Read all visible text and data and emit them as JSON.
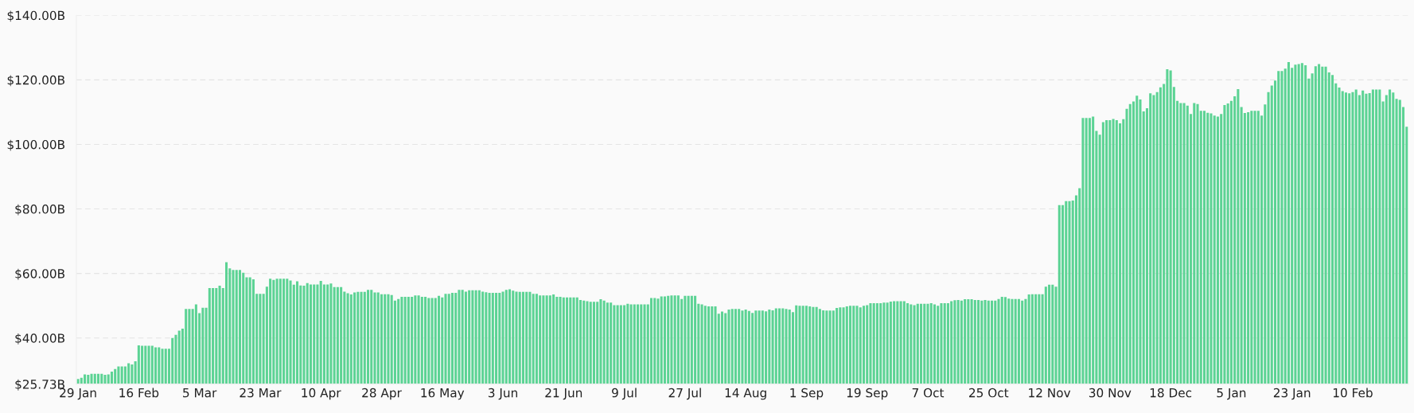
{
  "chart_data": {
    "type": "bar",
    "categories": [
      "29 Jan",
      null,
      null,
      null,
      null,
      null,
      null,
      null,
      null,
      null,
      null,
      null,
      null,
      null,
      null,
      null,
      null,
      null,
      "16 Feb",
      null,
      null,
      null,
      null,
      null,
      null,
      null,
      null,
      null,
      null,
      null,
      null,
      null,
      null,
      null,
      null,
      null,
      "5 Mar",
      null,
      null,
      null,
      null,
      null,
      null,
      null,
      null,
      null,
      null,
      null,
      null,
      null,
      null,
      null,
      null,
      null,
      "23 Mar",
      null,
      null,
      null,
      null,
      null,
      null,
      null,
      null,
      null,
      null,
      null,
      null,
      null,
      null,
      null,
      null,
      null,
      "10 Apr",
      null,
      null,
      null,
      null,
      null,
      null,
      null,
      null,
      null,
      null,
      null,
      null,
      null,
      null,
      null,
      null,
      null,
      "28 Apr",
      null,
      null,
      null,
      null,
      null,
      null,
      null,
      null,
      null,
      null,
      null,
      null,
      null,
      null,
      null,
      null,
      null,
      "16 May",
      null,
      null,
      null,
      null,
      null,
      null,
      null,
      null,
      null,
      null,
      null,
      null,
      null,
      null,
      null,
      null,
      null,
      "3 Jun",
      null,
      null,
      null,
      null,
      null,
      null,
      null,
      null,
      null,
      null,
      null,
      null,
      null,
      null,
      null,
      null,
      null,
      "21 Jun",
      null,
      null,
      null,
      null,
      null,
      null,
      null,
      null,
      null,
      null,
      null,
      null,
      null,
      null,
      null,
      null,
      null,
      "9 Jul",
      null,
      null,
      null,
      null,
      null,
      null,
      null,
      null,
      null,
      null,
      null,
      null,
      null,
      null,
      null,
      null,
      null,
      "27 Jul",
      null,
      null,
      null,
      null,
      null,
      null,
      null,
      null,
      null,
      null,
      null,
      null,
      null,
      null,
      null,
      null,
      null,
      "14 Aug",
      null,
      null,
      null,
      null,
      null,
      null,
      null,
      null,
      null,
      null,
      null,
      null,
      null,
      null,
      null,
      null,
      null,
      "1 Sep",
      null,
      null,
      null,
      null,
      null,
      null,
      null,
      null,
      null,
      null,
      null,
      null,
      null,
      null,
      null,
      null,
      null,
      "19 Sep",
      null,
      null,
      null,
      null,
      null,
      null,
      null,
      null,
      null,
      null,
      null,
      null,
      null,
      null,
      null,
      null,
      null,
      "7 Oct",
      null,
      null,
      null,
      null,
      null,
      null,
      null,
      null,
      null,
      null,
      null,
      null,
      null,
      null,
      null,
      null,
      null,
      "25 Oct",
      null,
      null,
      null,
      null,
      null,
      null,
      null,
      null,
      null,
      null,
      null,
      null,
      null,
      null,
      null,
      null,
      null,
      "12 Nov",
      null,
      null,
      null,
      null,
      null,
      null,
      null,
      null,
      null,
      null,
      null,
      null,
      null,
      null,
      null,
      null,
      null,
      "30 Nov",
      null,
      null,
      null,
      null,
      null,
      null,
      null,
      null,
      null,
      null,
      null,
      null,
      null,
      null,
      null,
      null,
      null,
      "18 Dec",
      null,
      null,
      null,
      null,
      null,
      null,
      null,
      null,
      null,
      null,
      null,
      null,
      null,
      null,
      null,
      null,
      null,
      "5 Jan",
      null,
      null,
      null,
      null,
      null,
      null,
      null,
      null,
      null,
      null,
      null,
      null,
      null,
      null,
      null,
      null,
      null,
      "23 Jan",
      null,
      null,
      null,
      null,
      null,
      null,
      null,
      null,
      null,
      null,
      null,
      null,
      null,
      null,
      null,
      null,
      null,
      "10 Feb",
      null,
      null,
      null,
      null,
      null,
      null,
      null,
      null,
      null,
      null,
      null,
      null,
      null,
      null,
      null,
      null
    ],
    "values": [
      27.3,
      27.7,
      28.7,
      28.6,
      28.9,
      28.9,
      28.9,
      28.9,
      28.6,
      28.7,
      29.6,
      30.4,
      31.2,
      31.2,
      31.2,
      32.2,
      31.8,
      32.8,
      37.7,
      37.6,
      37.6,
      37.6,
      37.6,
      37.1,
      37.1,
      36.7,
      36.7,
      36.7,
      40.0,
      41.0,
      42.3,
      42.9,
      49.0,
      49.0,
      49.0,
      50.4,
      47.7,
      49.4,
      49.4,
      55.5,
      55.5,
      55.5,
      56.2,
      55.5,
      63.5,
      61.6,
      61.1,
      61.1,
      61.1,
      60.2,
      58.8,
      58.8,
      58.2,
      53.7,
      53.7,
      53.7,
      55.9,
      58.4,
      58.0,
      58.4,
      58.4,
      58.4,
      58.4,
      57.8,
      56.5,
      57.6,
      56.3,
      56.2,
      57.0,
      56.6,
      56.6,
      56.6,
      57.7,
      56.6,
      56.6,
      56.9,
      55.8,
      55.8,
      55.8,
      54.4,
      53.9,
      53.5,
      54.1,
      54.3,
      54.3,
      54.3,
      54.9,
      54.9,
      54.1,
      54.1,
      53.6,
      53.6,
      53.6,
      53.3,
      51.6,
      52.1,
      52.8,
      52.8,
      52.8,
      52.8,
      53.2,
      53.2,
      52.8,
      52.8,
      52.4,
      52.4,
      52.4,
      53.1,
      52.6,
      53.7,
      53.7,
      54.0,
      54.0,
      54.9,
      54.9,
      54.4,
      54.8,
      54.8,
      54.8,
      54.8,
      54.4,
      54.2,
      54.0,
      54.0,
      54.0,
      54.0,
      54.4,
      54.9,
      55.1,
      54.7,
      54.4,
      54.3,
      54.3,
      54.3,
      54.3,
      53.7,
      53.7,
      53.2,
      53.2,
      53.2,
      53.2,
      53.5,
      52.8,
      52.8,
      52.6,
      52.6,
      52.6,
      52.6,
      52.6,
      51.8,
      51.6,
      51.4,
      51.2,
      51.2,
      51.2,
      52.0,
      51.6,
      51.0,
      51.0,
      50.2,
      50.2,
      50.2,
      50.2,
      50.6,
      50.4,
      50.4,
      50.4,
      50.4,
      50.4,
      50.4,
      52.4,
      52.4,
      52.2,
      52.9,
      52.9,
      53.1,
      53.2,
      53.2,
      53.2,
      52.1,
      53.1,
      53.1,
      53.1,
      53.1,
      50.6,
      50.4,
      50.0,
      49.8,
      49.8,
      49.8,
      47.5,
      48.2,
      47.7,
      48.8,
      49.0,
      49.0,
      49.0,
      48.5,
      48.8,
      48.4,
      47.8,
      48.5,
      48.5,
      48.5,
      48.3,
      48.8,
      48.6,
      49.2,
      49.2,
      49.2,
      49.0,
      48.8,
      48.0,
      50.1,
      50.0,
      50.0,
      50.0,
      49.8,
      49.6,
      49.6,
      49.0,
      48.6,
      48.5,
      48.5,
      48.5,
      49.3,
      49.5,
      49.5,
      49.8,
      50.0,
      50.0,
      50.0,
      49.5,
      50.0,
      50.2,
      50.8,
      50.8,
      50.8,
      50.8,
      51.0,
      51.0,
      51.3,
      51.4,
      51.4,
      51.4,
      51.4,
      50.8,
      50.4,
      50.2,
      50.6,
      50.6,
      50.6,
      50.6,
      50.8,
      50.4,
      50.0,
      50.8,
      50.8,
      50.8,
      51.4,
      51.7,
      51.8,
      51.6,
      52.0,
      52.0,
      52.0,
      51.8,
      51.8,
      51.6,
      51.8,
      51.6,
      51.6,
      51.6,
      52.1,
      52.8,
      52.7,
      52.2,
      52.1,
      52.1,
      52.1,
      51.6,
      52.1,
      53.5,
      53.6,
      53.6,
      53.6,
      53.6,
      55.9,
      56.5,
      56.5,
      55.9,
      81.2,
      81.2,
      82.4,
      82.4,
      82.6,
      84.2,
      86.4,
      108.2,
      108.2,
      108.2,
      108.6,
      104.2,
      103.0,
      106.9,
      107.5,
      107.5,
      107.9,
      107.5,
      106.5,
      107.8,
      111.0,
      112.5,
      113.3,
      115.1,
      113.9,
      110.2,
      111.2,
      115.8,
      115.3,
      116.2,
      117.7,
      118.7,
      123.3,
      122.9,
      117.8,
      113.5,
      112.8,
      112.8,
      112.0,
      109.4,
      112.8,
      112.5,
      110.4,
      110.4,
      109.8,
      109.6,
      108.9,
      108.6,
      109.4,
      112.2,
      112.7,
      113.5,
      114.9,
      117.1,
      111.6,
      109.7,
      110.0,
      110.4,
      110.4,
      110.4,
      108.9,
      112.4,
      116.2,
      118.2,
      119.8,
      122.7,
      122.7,
      123.5,
      125.5,
      123.7,
      124.7,
      124.9,
      125.2,
      124.5,
      120.4,
      122.0,
      124.2,
      124.9,
      124.1,
      124.1,
      122.3,
      121.5,
      118.9,
      117.6,
      116.5,
      116.1,
      115.8,
      116.2,
      117.0,
      115.3,
      116.7,
      115.7,
      115.9,
      117.0,
      117.0,
      117.0,
      113.3,
      115.3,
      117.0,
      116.1,
      114.1,
      113.8,
      111.6,
      105.5
    ],
    "color": "#5cd394",
    "ylim": [
      25.73,
      140
    ],
    "yticks": [
      {
        "value": 25.73,
        "label": "$25.73B"
      },
      {
        "value": 40,
        "label": "$40.00B"
      },
      {
        "value": 60,
        "label": "$60.00B"
      },
      {
        "value": 80,
        "label": "$80.00B"
      },
      {
        "value": 100,
        "label": "$100.00B"
      },
      {
        "value": 120,
        "label": "$120.00B"
      },
      {
        "value": 140,
        "label": "$140.00B"
      }
    ],
    "grid": "y"
  }
}
